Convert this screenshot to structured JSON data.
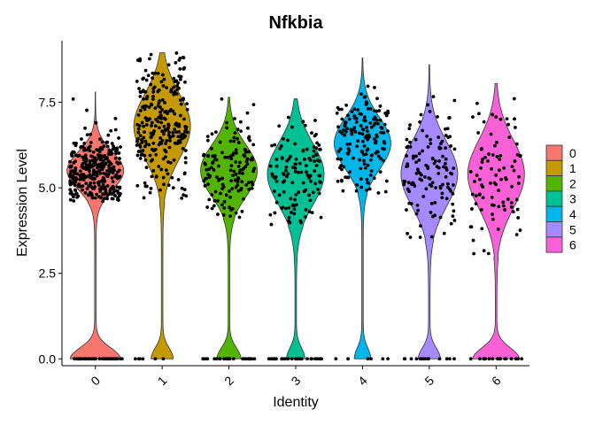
{
  "chart_data": {
    "type": "violin",
    "title": "Nfkbia",
    "xlabel": "Identity",
    "ylabel": "Expression Level",
    "ylim": [
      -0.2,
      9.3
    ],
    "yticks": [
      0.0,
      2.5,
      5.0,
      7.5
    ],
    "ytick_labels": [
      "0.0",
      "2.5",
      "5.0",
      "7.5"
    ],
    "categories": [
      "0",
      "1",
      "2",
      "3",
      "4",
      "5",
      "6"
    ],
    "legend_position": "right",
    "series": [
      {
        "name": "0",
        "color": "#F8766D",
        "max": 7.8,
        "n_zero": 40,
        "n_high": 330,
        "mode": 5.5,
        "spread": 0.55,
        "zero_height": 2.6,
        "body_low": 4.6
      },
      {
        "name": "1",
        "color": "#C49A00",
        "max": 8.95,
        "n_zero": 6,
        "n_high": 260,
        "mode": 6.8,
        "spread": 0.95,
        "zero_height": 1.1,
        "body_low": 4.6
      },
      {
        "name": "2",
        "color": "#53B400",
        "max": 7.65,
        "n_zero": 32,
        "n_high": 140,
        "mode": 5.5,
        "spread": 0.75,
        "zero_height": 1.2,
        "body_low": 4.1
      },
      {
        "name": "3",
        "color": "#00C094",
        "max": 7.6,
        "n_zero": 34,
        "n_high": 120,
        "mode": 5.4,
        "spread": 0.9,
        "zero_height": 0.9,
        "body_low": 3.9
      },
      {
        "name": "4",
        "color": "#00B6EB",
        "max": 8.8,
        "n_zero": 6,
        "n_high": 160,
        "mode": 6.3,
        "spread": 0.75,
        "zero_height": 0.8,
        "body_low": 4.8
      },
      {
        "name": "5",
        "color": "#A58AFF",
        "max": 8.6,
        "n_zero": 14,
        "n_high": 130,
        "mode": 5.4,
        "spread": 0.95,
        "zero_height": 1.1,
        "body_low": 3.5
      },
      {
        "name": "6",
        "color": "#FB61D7",
        "max": 8.05,
        "n_zero": 18,
        "n_high": 90,
        "mode": 5.4,
        "spread": 1.0,
        "zero_height": 2.4,
        "body_low": 3.0
      }
    ]
  }
}
